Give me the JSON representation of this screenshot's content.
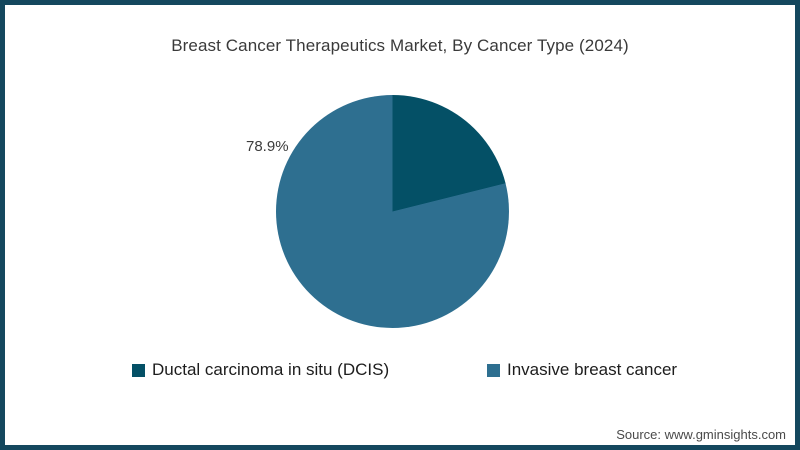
{
  "chart": {
    "title": "Breast Cancer Therapeutics Market, By Cancer Type (2024)",
    "visible_slice_label": "78.9%"
  },
  "chart_data": {
    "type": "pie",
    "title": "Breast Cancer Therapeutics Market, By Cancer Type (2024)",
    "slices": [
      {
        "label": "Ductal carcinoma in situ (DCIS)",
        "value": 21.1,
        "color": "#045066"
      },
      {
        "label": "Invasive breast cancer",
        "value": 78.9,
        "color": "#2E6F90"
      }
    ],
    "start_angle_deg": 0,
    "direction": "clockwise",
    "data_labels_shown": [
      "78.9%"
    ],
    "legend_position": "bottom"
  },
  "footer": {
    "source": "Source: www.gminsights.com"
  },
  "colors": {
    "frame_border": "#14485E",
    "background": "#FFFFFF",
    "title_text": "#3A3A3A",
    "label_text": "#3C3C3C",
    "legend_text": "#1D1D1D",
    "source_text": "#4A4A4A"
  }
}
